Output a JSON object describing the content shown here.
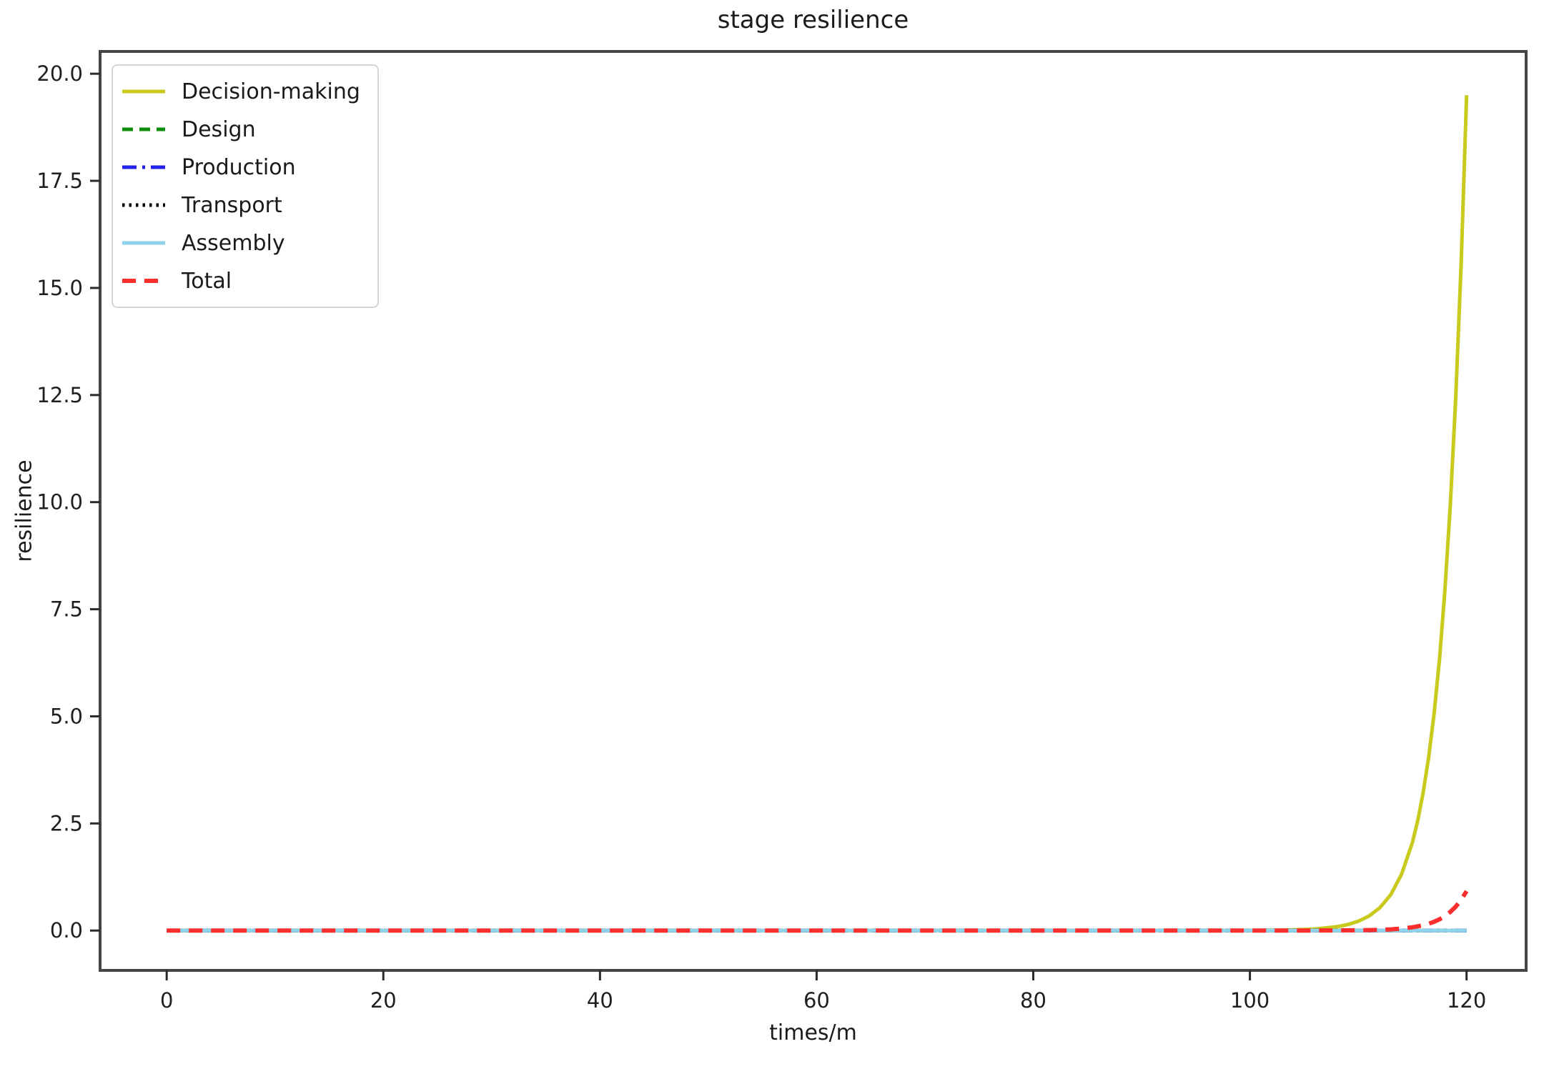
{
  "chart_data": {
    "type": "line",
    "title": "stage resilience",
    "xlabel": "times/m",
    "ylabel": "resilience",
    "xlim": [
      -6.15,
      125.5
    ],
    "ylim": [
      -0.93,
      20.52
    ],
    "xticks": [
      "0",
      "20",
      "40",
      "60",
      "80",
      "100",
      "120"
    ],
    "yticks": [
      "0.0",
      "2.5",
      "5.0",
      "7.5",
      "10.0",
      "12.5",
      "15.0",
      "17.5",
      "20.0"
    ],
    "grid": false,
    "legend_position": "upper-left",
    "series": [
      {
        "name": "Decision-making",
        "color": "#c9ca1e",
        "style": "solid",
        "dash": "",
        "width": 5,
        "points": [
          [
            0,
            0
          ],
          [
            10,
            0
          ],
          [
            20,
            0
          ],
          [
            30,
            0
          ],
          [
            40,
            0
          ],
          [
            50,
            0
          ],
          [
            60,
            0
          ],
          [
            70,
            0
          ],
          [
            80,
            0
          ],
          [
            90,
            0
          ],
          [
            95,
            0
          ],
          [
            100,
            0.002
          ],
          [
            102,
            0.006
          ],
          [
            104,
            0.015
          ],
          [
            106,
            0.036
          ],
          [
            108,
            0.088
          ],
          [
            109,
            0.138
          ],
          [
            110,
            0.217
          ],
          [
            111,
            0.34
          ],
          [
            112,
            0.533
          ],
          [
            113,
            0.836
          ],
          [
            114,
            1.311
          ],
          [
            115,
            2.056
          ],
          [
            115.5,
            2.574
          ],
          [
            116,
            3.224
          ],
          [
            116.5,
            4.037
          ],
          [
            117,
            5.055
          ],
          [
            117.5,
            6.33
          ],
          [
            118,
            7.926
          ],
          [
            118.5,
            9.925
          ],
          [
            119,
            12.428
          ],
          [
            119.5,
            15.562
          ],
          [
            120,
            19.5
          ]
        ]
      },
      {
        "name": "Design",
        "color": "#0e8c0e",
        "style": "dashed",
        "dash": "15,9",
        "width": 5,
        "points": [
          [
            0,
            0
          ],
          [
            20,
            0
          ],
          [
            40,
            0
          ],
          [
            60,
            0
          ],
          [
            80,
            0
          ],
          [
            100,
            0
          ],
          [
            120,
            0
          ]
        ]
      },
      {
        "name": "Production",
        "color": "#2222f0",
        "style": "dashdot",
        "dash": "20,8,4,8",
        "width": 5,
        "points": [
          [
            0,
            0
          ],
          [
            20,
            0
          ],
          [
            40,
            0
          ],
          [
            60,
            0
          ],
          [
            80,
            0
          ],
          [
            100,
            0
          ],
          [
            120,
            0
          ]
        ]
      },
      {
        "name": "Transport",
        "color": "#000000",
        "style": "dotted",
        "dash": "3.5,6",
        "width": 5,
        "points": [
          [
            0,
            0
          ],
          [
            20,
            0
          ],
          [
            40,
            0
          ],
          [
            60,
            0
          ],
          [
            80,
            0
          ],
          [
            100,
            0
          ],
          [
            120,
            0
          ]
        ]
      },
      {
        "name": "Assembly",
        "color": "#8fd2ec",
        "style": "solid",
        "dash": "",
        "width": 5,
        "points": [
          [
            0,
            0
          ],
          [
            20,
            0
          ],
          [
            40,
            0
          ],
          [
            60,
            0
          ],
          [
            80,
            0
          ],
          [
            100,
            0
          ],
          [
            120,
            0
          ]
        ]
      },
      {
        "name": "Total",
        "color": "#fb2e2e",
        "style": "dashed",
        "dash": "19,12",
        "width": 6,
        "points": [
          [
            0,
            0
          ],
          [
            10,
            0
          ],
          [
            20,
            0
          ],
          [
            30,
            0
          ],
          [
            40,
            0
          ],
          [
            50,
            0
          ],
          [
            60,
            0
          ],
          [
            70,
            0
          ],
          [
            80,
            0
          ],
          [
            90,
            0
          ],
          [
            100,
            0
          ],
          [
            104,
            0
          ],
          [
            106,
            0.001
          ],
          [
            108,
            0.002
          ],
          [
            110,
            0.006
          ],
          [
            111,
            0.01
          ],
          [
            112,
            0.017
          ],
          [
            113,
            0.028
          ],
          [
            114,
            0.046
          ],
          [
            115,
            0.075
          ],
          [
            116,
            0.124
          ],
          [
            116.5,
            0.159
          ],
          [
            117,
            0.204
          ],
          [
            117.5,
            0.262
          ],
          [
            118,
            0.338
          ],
          [
            118.5,
            0.434
          ],
          [
            119,
            0.558
          ],
          [
            119.5,
            0.717
          ],
          [
            120,
            0.92
          ]
        ]
      }
    ]
  },
  "colors": {
    "spine": "#454545",
    "tick": "#2b2b2b",
    "background": "#ffffff"
  }
}
